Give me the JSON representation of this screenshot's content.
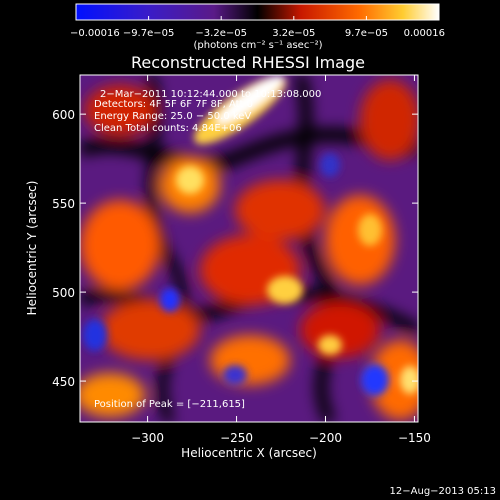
{
  "chart_data": {
    "type": "heatmap",
    "title": "Reconstructed RHESSI Image",
    "xlabel": "Heliocentric X (arcsec)",
    "ylabel": "Heliocentric Y (arcsec)",
    "xlim": [
      -338,
      -148
    ],
    "ylim": [
      427,
      622
    ],
    "x_ticks": [
      -300,
      -250,
      -200,
      -150
    ],
    "x_tick_labels": [
      "−300",
      "−250",
      "−200",
      "−150"
    ],
    "y_ticks": [
      450,
      500,
      550,
      600
    ],
    "y_tick_labels": [
      "450",
      "500",
      "550",
      "600"
    ],
    "colorbar": {
      "range": [
        -0.00016,
        0.00016
      ],
      "tick_labels": [
        "−0.00016",
        "−9.7e−05",
        "−3.2e−05",
        "3.2e−05",
        "9.7e−05",
        "0.00016"
      ],
      "units": "(photons cm⁻² s⁻¹ asec⁻²)"
    },
    "annotations": [
      "2−Mar−2011 10:12:44.000 to 10:13:08.000",
      "Detectors: 4F 5F 6F 7F 8F, Att 0",
      "Energy Range: 25.0 − 50.0 keV",
      "Clean     Total counts: 4.84E+06"
    ],
    "peak_label": "Position of Peak = [−211,615]",
    "peak_position": [
      -211,
      615
    ],
    "footer_date": "12−Aug−2013 05:13"
  }
}
